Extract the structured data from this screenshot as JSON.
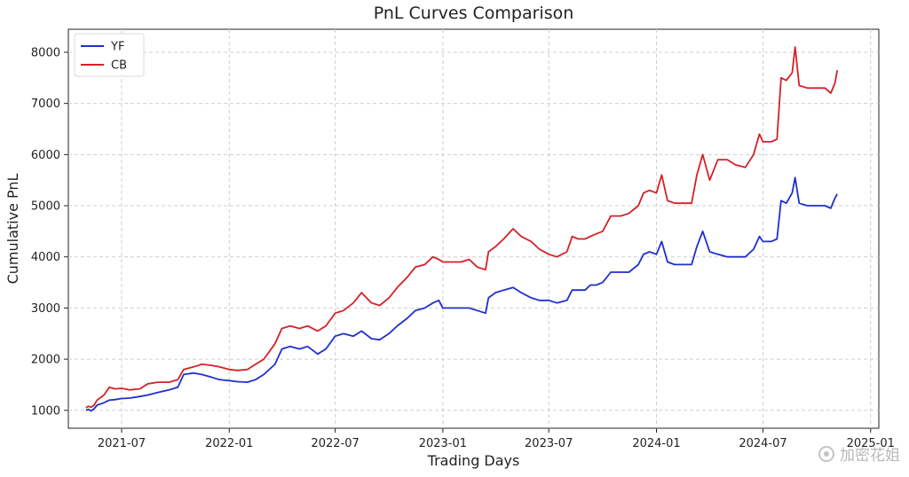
{
  "chart_data": {
    "type": "line",
    "title": "PnL Curves Comparison",
    "xlabel": "Trading Days",
    "ylabel": "Cumulative PnL",
    "x_range": [
      "2021-04-01",
      "2025-01-15"
    ],
    "ylim": [
      650,
      8450
    ],
    "x_ticks": [
      {
        "date": "2021-07-01",
        "label": "2021-07"
      },
      {
        "date": "2022-01-01",
        "label": "2022-01"
      },
      {
        "date": "2022-07-01",
        "label": "2022-07"
      },
      {
        "date": "2023-01-01",
        "label": "2023-01"
      },
      {
        "date": "2023-07-01",
        "label": "2023-07"
      },
      {
        "date": "2024-01-01",
        "label": "2024-01"
      },
      {
        "date": "2024-07-01",
        "label": "2024-07"
      },
      {
        "date": "2025-01-01",
        "label": "2025-01"
      }
    ],
    "y_ticks": [
      {
        "value": 1000,
        "label": "1000"
      },
      {
        "value": 2000,
        "label": "2000"
      },
      {
        "value": 3000,
        "label": "3000"
      },
      {
        "value": 4000,
        "label": "4000"
      },
      {
        "value": 5000,
        "label": "5000"
      },
      {
        "value": 6000,
        "label": "6000"
      },
      {
        "value": 7000,
        "label": "7000"
      },
      {
        "value": 8000,
        "label": "8000"
      }
    ],
    "grid": true,
    "legend": "top-left",
    "series": [
      {
        "name": "YF",
        "color": "#1f2fcf",
        "points": [
          [
            "2021-05-01",
            1000
          ],
          [
            "2021-05-05",
            1020
          ],
          [
            "2021-05-10",
            990
          ],
          [
            "2021-05-15",
            1030
          ],
          [
            "2021-05-20",
            1100
          ],
          [
            "2021-06-01",
            1150
          ],
          [
            "2021-06-10",
            1200
          ],
          [
            "2021-06-20",
            1210
          ],
          [
            "2021-07-01",
            1230
          ],
          [
            "2021-07-15",
            1240
          ],
          [
            "2021-08-01",
            1270
          ],
          [
            "2021-08-15",
            1300
          ],
          [
            "2021-09-01",
            1350
          ],
          [
            "2021-09-20",
            1400
          ],
          [
            "2021-10-05",
            1450
          ],
          [
            "2021-10-15",
            1700
          ],
          [
            "2021-11-01",
            1730
          ],
          [
            "2021-11-15",
            1700
          ],
          [
            "2021-12-01",
            1650
          ],
          [
            "2021-12-15",
            1600
          ],
          [
            "2022-01-01",
            1580
          ],
          [
            "2022-01-15",
            1560
          ],
          [
            "2022-02-01",
            1550
          ],
          [
            "2022-02-15",
            1600
          ],
          [
            "2022-03-01",
            1700
          ],
          [
            "2022-03-20",
            1900
          ],
          [
            "2022-04-01",
            2200
          ],
          [
            "2022-04-15",
            2250
          ],
          [
            "2022-05-01",
            2200
          ],
          [
            "2022-05-15",
            2250
          ],
          [
            "2022-06-01",
            2100
          ],
          [
            "2022-06-15",
            2200
          ],
          [
            "2022-07-01",
            2450
          ],
          [
            "2022-07-15",
            2500
          ],
          [
            "2022-08-01",
            2450
          ],
          [
            "2022-08-15",
            2550
          ],
          [
            "2022-09-01",
            2400
          ],
          [
            "2022-09-15",
            2380
          ],
          [
            "2022-10-01",
            2500
          ],
          [
            "2022-10-15",
            2650
          ],
          [
            "2022-11-01",
            2800
          ],
          [
            "2022-11-15",
            2950
          ],
          [
            "2022-12-01",
            3000
          ],
          [
            "2022-12-15",
            3100
          ],
          [
            "2022-12-25",
            3150
          ],
          [
            "2023-01-01",
            3000
          ],
          [
            "2023-01-15",
            3000
          ],
          [
            "2023-02-01",
            3000
          ],
          [
            "2023-02-15",
            3000
          ],
          [
            "2023-03-01",
            2950
          ],
          [
            "2023-03-15",
            2900
          ],
          [
            "2023-03-20",
            3200
          ],
          [
            "2023-04-01",
            3300
          ],
          [
            "2023-04-15",
            3350
          ],
          [
            "2023-05-01",
            3400
          ],
          [
            "2023-05-15",
            3300
          ],
          [
            "2023-06-01",
            3200
          ],
          [
            "2023-06-15",
            3150
          ],
          [
            "2023-07-01",
            3150
          ],
          [
            "2023-07-15",
            3100
          ],
          [
            "2023-08-01",
            3150
          ],
          [
            "2023-08-10",
            3350
          ],
          [
            "2023-08-20",
            3350
          ],
          [
            "2023-09-01",
            3350
          ],
          [
            "2023-09-10",
            3450
          ],
          [
            "2023-09-20",
            3450
          ],
          [
            "2023-10-01",
            3500
          ],
          [
            "2023-10-15",
            3700
          ],
          [
            "2023-11-01",
            3700
          ],
          [
            "2023-11-15",
            3700
          ],
          [
            "2023-12-01",
            3850
          ],
          [
            "2023-12-10",
            4050
          ],
          [
            "2023-12-20",
            4100
          ],
          [
            "2024-01-01",
            4050
          ],
          [
            "2024-01-10",
            4300
          ],
          [
            "2024-01-20",
            3900
          ],
          [
            "2024-02-01",
            3850
          ],
          [
            "2024-02-15",
            3850
          ],
          [
            "2024-03-01",
            3850
          ],
          [
            "2024-03-10",
            4200
          ],
          [
            "2024-03-20",
            4500
          ],
          [
            "2024-04-01",
            4100
          ],
          [
            "2024-04-15",
            4050
          ],
          [
            "2024-05-01",
            4000
          ],
          [
            "2024-05-15",
            4000
          ],
          [
            "2024-06-01",
            4000
          ],
          [
            "2024-06-15",
            4150
          ],
          [
            "2024-06-25",
            4400
          ],
          [
            "2024-07-01",
            4300
          ],
          [
            "2024-07-15",
            4300
          ],
          [
            "2024-07-25",
            4350
          ],
          [
            "2024-08-01",
            5100
          ],
          [
            "2024-08-10",
            5050
          ],
          [
            "2024-08-20",
            5250
          ],
          [
            "2024-08-25",
            5550
          ],
          [
            "2024-09-01",
            5050
          ],
          [
            "2024-09-15",
            5000
          ],
          [
            "2024-10-01",
            5000
          ],
          [
            "2024-10-15",
            5000
          ],
          [
            "2024-10-25",
            4950
          ],
          [
            "2024-11-01",
            5150
          ],
          [
            "2024-11-05",
            5230
          ]
        ]
      },
      {
        "name": "CB",
        "color": "#d62028",
        "points": [
          [
            "2021-05-01",
            1050
          ],
          [
            "2021-05-05",
            1080
          ],
          [
            "2021-05-10",
            1060
          ],
          [
            "2021-05-15",
            1100
          ],
          [
            "2021-05-20",
            1200
          ],
          [
            "2021-06-01",
            1300
          ],
          [
            "2021-06-10",
            1450
          ],
          [
            "2021-06-20",
            1420
          ],
          [
            "2021-07-01",
            1430
          ],
          [
            "2021-07-15",
            1400
          ],
          [
            "2021-08-01",
            1420
          ],
          [
            "2021-08-15",
            1520
          ],
          [
            "2021-09-01",
            1550
          ],
          [
            "2021-09-20",
            1550
          ],
          [
            "2021-10-05",
            1600
          ],
          [
            "2021-10-15",
            1800
          ],
          [
            "2021-11-01",
            1850
          ],
          [
            "2021-11-15",
            1900
          ],
          [
            "2021-12-01",
            1880
          ],
          [
            "2021-12-15",
            1850
          ],
          [
            "2022-01-01",
            1800
          ],
          [
            "2022-01-15",
            1780
          ],
          [
            "2022-02-01",
            1800
          ],
          [
            "2022-02-15",
            1900
          ],
          [
            "2022-03-01",
            2000
          ],
          [
            "2022-03-20",
            2300
          ],
          [
            "2022-04-01",
            2600
          ],
          [
            "2022-04-15",
            2650
          ],
          [
            "2022-05-01",
            2600
          ],
          [
            "2022-05-15",
            2650
          ],
          [
            "2022-06-01",
            2550
          ],
          [
            "2022-06-15",
            2650
          ],
          [
            "2022-07-01",
            2900
          ],
          [
            "2022-07-15",
            2950
          ],
          [
            "2022-08-01",
            3100
          ],
          [
            "2022-08-15",
            3300
          ],
          [
            "2022-09-01",
            3100
          ],
          [
            "2022-09-15",
            3050
          ],
          [
            "2022-10-01",
            3200
          ],
          [
            "2022-10-15",
            3400
          ],
          [
            "2022-11-01",
            3600
          ],
          [
            "2022-11-15",
            3800
          ],
          [
            "2022-12-01",
            3850
          ],
          [
            "2022-12-15",
            4000
          ],
          [
            "2022-12-25",
            3950
          ],
          [
            "2023-01-01",
            3900
          ],
          [
            "2023-01-15",
            3900
          ],
          [
            "2023-02-01",
            3900
          ],
          [
            "2023-02-15",
            3950
          ],
          [
            "2023-03-01",
            3800
          ],
          [
            "2023-03-15",
            3750
          ],
          [
            "2023-03-20",
            4100
          ],
          [
            "2023-04-01",
            4200
          ],
          [
            "2023-04-15",
            4350
          ],
          [
            "2023-05-01",
            4550
          ],
          [
            "2023-05-15",
            4400
          ],
          [
            "2023-06-01",
            4300
          ],
          [
            "2023-06-15",
            4150
          ],
          [
            "2023-07-01",
            4050
          ],
          [
            "2023-07-15",
            4000
          ],
          [
            "2023-08-01",
            4100
          ],
          [
            "2023-08-10",
            4400
          ],
          [
            "2023-08-20",
            4350
          ],
          [
            "2023-09-01",
            4350
          ],
          [
            "2023-09-10",
            4400
          ],
          [
            "2023-09-20",
            4450
          ],
          [
            "2023-10-01",
            4500
          ],
          [
            "2023-10-15",
            4800
          ],
          [
            "2023-11-01",
            4800
          ],
          [
            "2023-11-15",
            4850
          ],
          [
            "2023-12-01",
            5000
          ],
          [
            "2023-12-10",
            5250
          ],
          [
            "2023-12-20",
            5300
          ],
          [
            "2024-01-01",
            5250
          ],
          [
            "2024-01-10",
            5600
          ],
          [
            "2024-01-20",
            5100
          ],
          [
            "2024-02-01",
            5050
          ],
          [
            "2024-02-15",
            5050
          ],
          [
            "2024-03-01",
            5050
          ],
          [
            "2024-03-10",
            5600
          ],
          [
            "2024-03-20",
            6000
          ],
          [
            "2024-04-01",
            5500
          ],
          [
            "2024-04-15",
            5900
          ],
          [
            "2024-05-01",
            5900
          ],
          [
            "2024-05-15",
            5800
          ],
          [
            "2024-06-01",
            5750
          ],
          [
            "2024-06-15",
            6000
          ],
          [
            "2024-06-25",
            6400
          ],
          [
            "2024-07-01",
            6250
          ],
          [
            "2024-07-15",
            6250
          ],
          [
            "2024-07-25",
            6300
          ],
          [
            "2024-08-01",
            7500
          ],
          [
            "2024-08-10",
            7450
          ],
          [
            "2024-08-20",
            7600
          ],
          [
            "2024-08-25",
            8100
          ],
          [
            "2024-09-01",
            7350
          ],
          [
            "2024-09-15",
            7300
          ],
          [
            "2024-10-01",
            7300
          ],
          [
            "2024-10-15",
            7300
          ],
          [
            "2024-10-25",
            7200
          ],
          [
            "2024-11-01",
            7400
          ],
          [
            "2024-11-05",
            7650
          ]
        ]
      }
    ]
  },
  "watermark": {
    "text": "加密花姐"
  }
}
